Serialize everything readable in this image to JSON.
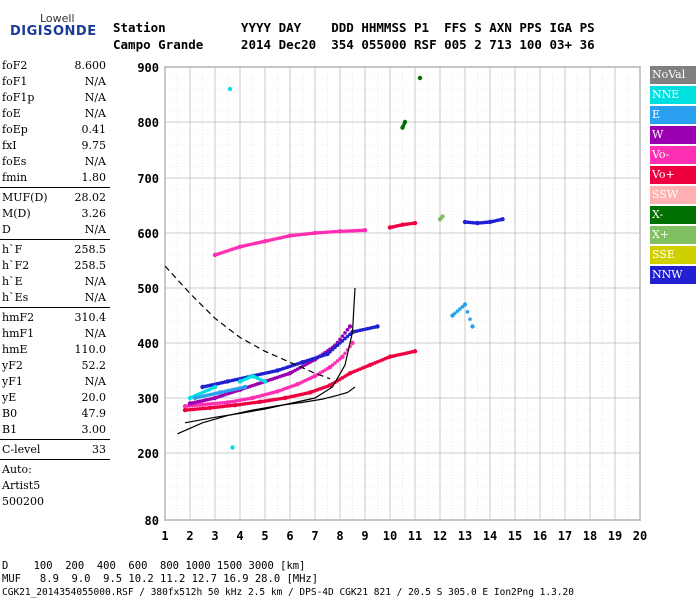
{
  "logo": {
    "line1": "Lowell",
    "line2": "DIGISONDE"
  },
  "header": {
    "row1": "Station          YYYY DAY    DDD HHMMSS P1  FFS S AXN PPS IGA PS",
    "row2": "Campo Grande     2014 Dec20  354 055000 RSF 005 2 713 100 03+ 36"
  },
  "params": [
    {
      "k": "foF2",
      "v": "8.600"
    },
    {
      "k": "foF1",
      "v": "N/A"
    },
    {
      "k": "foF1p",
      "v": "N/A"
    },
    {
      "k": "foE",
      "v": "N/A"
    },
    {
      "k": "foEp",
      "v": "0.41"
    },
    {
      "k": "fxI",
      "v": "9.75"
    },
    {
      "k": "foEs",
      "v": "N/A"
    },
    {
      "k": "fmin",
      "v": "1.80"
    },
    {
      "k": "MUF(D)",
      "v": "28.02"
    },
    {
      "k": "M(D)",
      "v": "3.26"
    },
    {
      "k": "D",
      "v": "N/A"
    },
    {
      "k": "h`F",
      "v": "258.5"
    },
    {
      "k": "h`F2",
      "v": "258.5"
    },
    {
      "k": "h`E",
      "v": "N/A"
    },
    {
      "k": "h`Es",
      "v": "N/A"
    },
    {
      "k": "hmF2",
      "v": "310.4"
    },
    {
      "k": "hmF1",
      "v": "N/A"
    },
    {
      "k": "hmE",
      "v": "110.0"
    },
    {
      "k": "yF2",
      "v": "52.2"
    },
    {
      "k": "yF1",
      "v": "N/A"
    },
    {
      "k": "yE",
      "v": "20.0"
    },
    {
      "k": "B0",
      "v": "47.9"
    },
    {
      "k": "B1",
      "v": "3.00"
    },
    {
      "k": "C-level",
      "v": "33"
    },
    {
      "k": "Auto:",
      "v": ""
    },
    {
      "k": "Artist5",
      "v": ""
    },
    {
      "k": "500200",
      "v": ""
    }
  ],
  "legend": [
    {
      "label": "NoVal",
      "color": "#808080"
    },
    {
      "label": "NNE",
      "color": "#00e0e0"
    },
    {
      "label": "E",
      "color": "#2aa0f0"
    },
    {
      "label": "W",
      "color": "#9a00b0"
    },
    {
      "label": "Vo-",
      "color": "#ff2fb4"
    },
    {
      "label": "Vo+",
      "color": "#ee0040"
    },
    {
      "label": "SSW",
      "color": "#ffb0b0"
    },
    {
      "label": "X-",
      "color": "#007000"
    },
    {
      "label": "X+",
      "color": "#80c060"
    },
    {
      "label": "SSE",
      "color": "#d0d000"
    },
    {
      "label": "NNW",
      "color": "#2020d0"
    }
  ],
  "footer": {
    "line1": "D    100  200  400  600  800 1000 1500 3000 [km]",
    "line2": "MUF   8.9  9.0  9.5 10.2 11.2 12.7 16.9 28.0 [MHz]",
    "line3": "CGK21_2014354055000.RSF / 380fx512h 50 kHz 2.5 km / DPS-4D CGK21 821 / 20.5 S 305.0 E Ion2Png 1.3.20"
  },
  "chart_data": {
    "type": "scatter",
    "xlabel": "",
    "ylabel": "",
    "xlim": [
      1,
      20
    ],
    "ylim": [
      80,
      900
    ],
    "x_ticks": [
      1,
      2,
      3,
      4,
      5,
      6,
      7,
      8,
      9,
      10,
      11,
      12,
      13,
      14,
      15,
      16,
      17,
      18,
      19,
      20
    ],
    "y_ticks": [
      80,
      200,
      300,
      400,
      500,
      600,
      700,
      800,
      900
    ],
    "grid": true,
    "legend_position": "right",
    "traces": [
      {
        "name": "O-trace main",
        "color": "#ff2fb4",
        "points": [
          [
            1.8,
            285
          ],
          [
            2.5,
            288
          ],
          [
            3.5,
            292
          ],
          [
            4.5,
            300
          ],
          [
            5.5,
            312
          ],
          [
            6.3,
            325
          ],
          [
            7.0,
            340
          ],
          [
            7.6,
            356
          ],
          [
            8.1,
            375
          ],
          [
            8.5,
            400
          ]
        ]
      },
      {
        "name": "W trace",
        "color": "#9a00b0",
        "points": [
          [
            2.0,
            290
          ],
          [
            3.0,
            300
          ],
          [
            4.0,
            315
          ],
          [
            5.0,
            330
          ],
          [
            6.0,
            345
          ],
          [
            7.0,
            370
          ],
          [
            7.8,
            395
          ],
          [
            8.4,
            430
          ]
        ]
      },
      {
        "name": "Vo+ low trace",
        "color": "#ee0040",
        "points": [
          [
            1.8,
            278
          ],
          [
            2.8,
            282
          ],
          [
            3.8,
            287
          ],
          [
            4.8,
            293
          ],
          [
            5.8,
            300
          ],
          [
            6.8,
            310
          ],
          [
            7.6,
            323
          ],
          [
            8.4,
            345
          ],
          [
            9.2,
            360
          ],
          [
            10.0,
            375
          ],
          [
            11.0,
            385
          ]
        ]
      },
      {
        "name": "NNW trace",
        "color": "#2020d0",
        "points": [
          [
            2.5,
            320
          ],
          [
            3.5,
            330
          ],
          [
            4.5,
            340
          ],
          [
            5.5,
            350
          ],
          [
            6.5,
            365
          ],
          [
            7.5,
            380
          ],
          [
            8.5,
            420
          ],
          [
            9.5,
            430
          ]
        ]
      },
      {
        "name": "NNE spread",
        "color": "#00e0e0",
        "points": [
          [
            2.0,
            300
          ],
          [
            3.0,
            320
          ],
          [
            3.6,
            860
          ],
          [
            3.7,
            210
          ],
          [
            4.0,
            330
          ],
          [
            4.5,
            340
          ],
          [
            5.0,
            330
          ]
        ]
      },
      {
        "name": "E spread",
        "color": "#2aa0f0",
        "points": [
          [
            2.2,
            300
          ],
          [
            3.2,
            310
          ],
          [
            4.2,
            320
          ],
          [
            12.5,
            450
          ],
          [
            13.0,
            470
          ],
          [
            13.3,
            430
          ]
        ]
      },
      {
        "name": "Vo- 2nd hop",
        "color": "#ff2fb4",
        "points": [
          [
            3.0,
            560
          ],
          [
            4.0,
            575
          ],
          [
            5.0,
            585
          ],
          [
            6.0,
            595
          ],
          [
            7.0,
            600
          ],
          [
            8.0,
            603
          ],
          [
            9.0,
            605
          ]
        ]
      },
      {
        "name": "Vo+ 2nd hop",
        "color": "#ee0040",
        "points": [
          [
            10.0,
            610
          ],
          [
            10.5,
            615
          ],
          [
            11.0,
            618
          ]
        ]
      },
      {
        "name": "NNW 2nd hop",
        "color": "#2020d0",
        "points": [
          [
            13.0,
            620
          ],
          [
            13.5,
            618
          ],
          [
            14.0,
            620
          ],
          [
            14.5,
            625
          ]
        ]
      },
      {
        "name": "X+ points",
        "color": "#80c060",
        "points": [
          [
            12.0,
            625
          ],
          [
            12.1,
            630
          ]
        ]
      },
      {
        "name": "X- points",
        "color": "#007000",
        "points": [
          [
            10.5,
            790
          ],
          [
            10.6,
            800
          ],
          [
            11.2,
            880
          ]
        ]
      }
    ],
    "model_profile": [
      [
        1.5,
        235
      ],
      [
        2.5,
        255
      ],
      [
        3.5,
        268
      ],
      [
        4.5,
        278
      ],
      [
        5.5,
        286
      ],
      [
        6.5,
        292
      ],
      [
        7.3,
        298
      ],
      [
        7.9,
        305
      ],
      [
        8.3,
        310
      ],
      [
        8.6,
        320
      ]
    ],
    "virtual_height_model": [
      [
        1.8,
        255
      ],
      [
        3.0,
        265
      ],
      [
        4.0,
        272
      ],
      [
        5.0,
        280
      ],
      [
        6.0,
        290
      ],
      [
        7.0,
        300
      ],
      [
        7.7,
        320
      ],
      [
        8.2,
        360
      ],
      [
        8.5,
        420
      ],
      [
        8.6,
        500
      ]
    ],
    "dashed_muf_curve": [
      [
        1.0,
        540
      ],
      [
        2.0,
        490
      ],
      [
        3.0,
        445
      ],
      [
        4.0,
        410
      ],
      [
        5.0,
        385
      ],
      [
        6.0,
        365
      ],
      [
        7.0,
        345
      ],
      [
        7.6,
        335
      ]
    ]
  }
}
